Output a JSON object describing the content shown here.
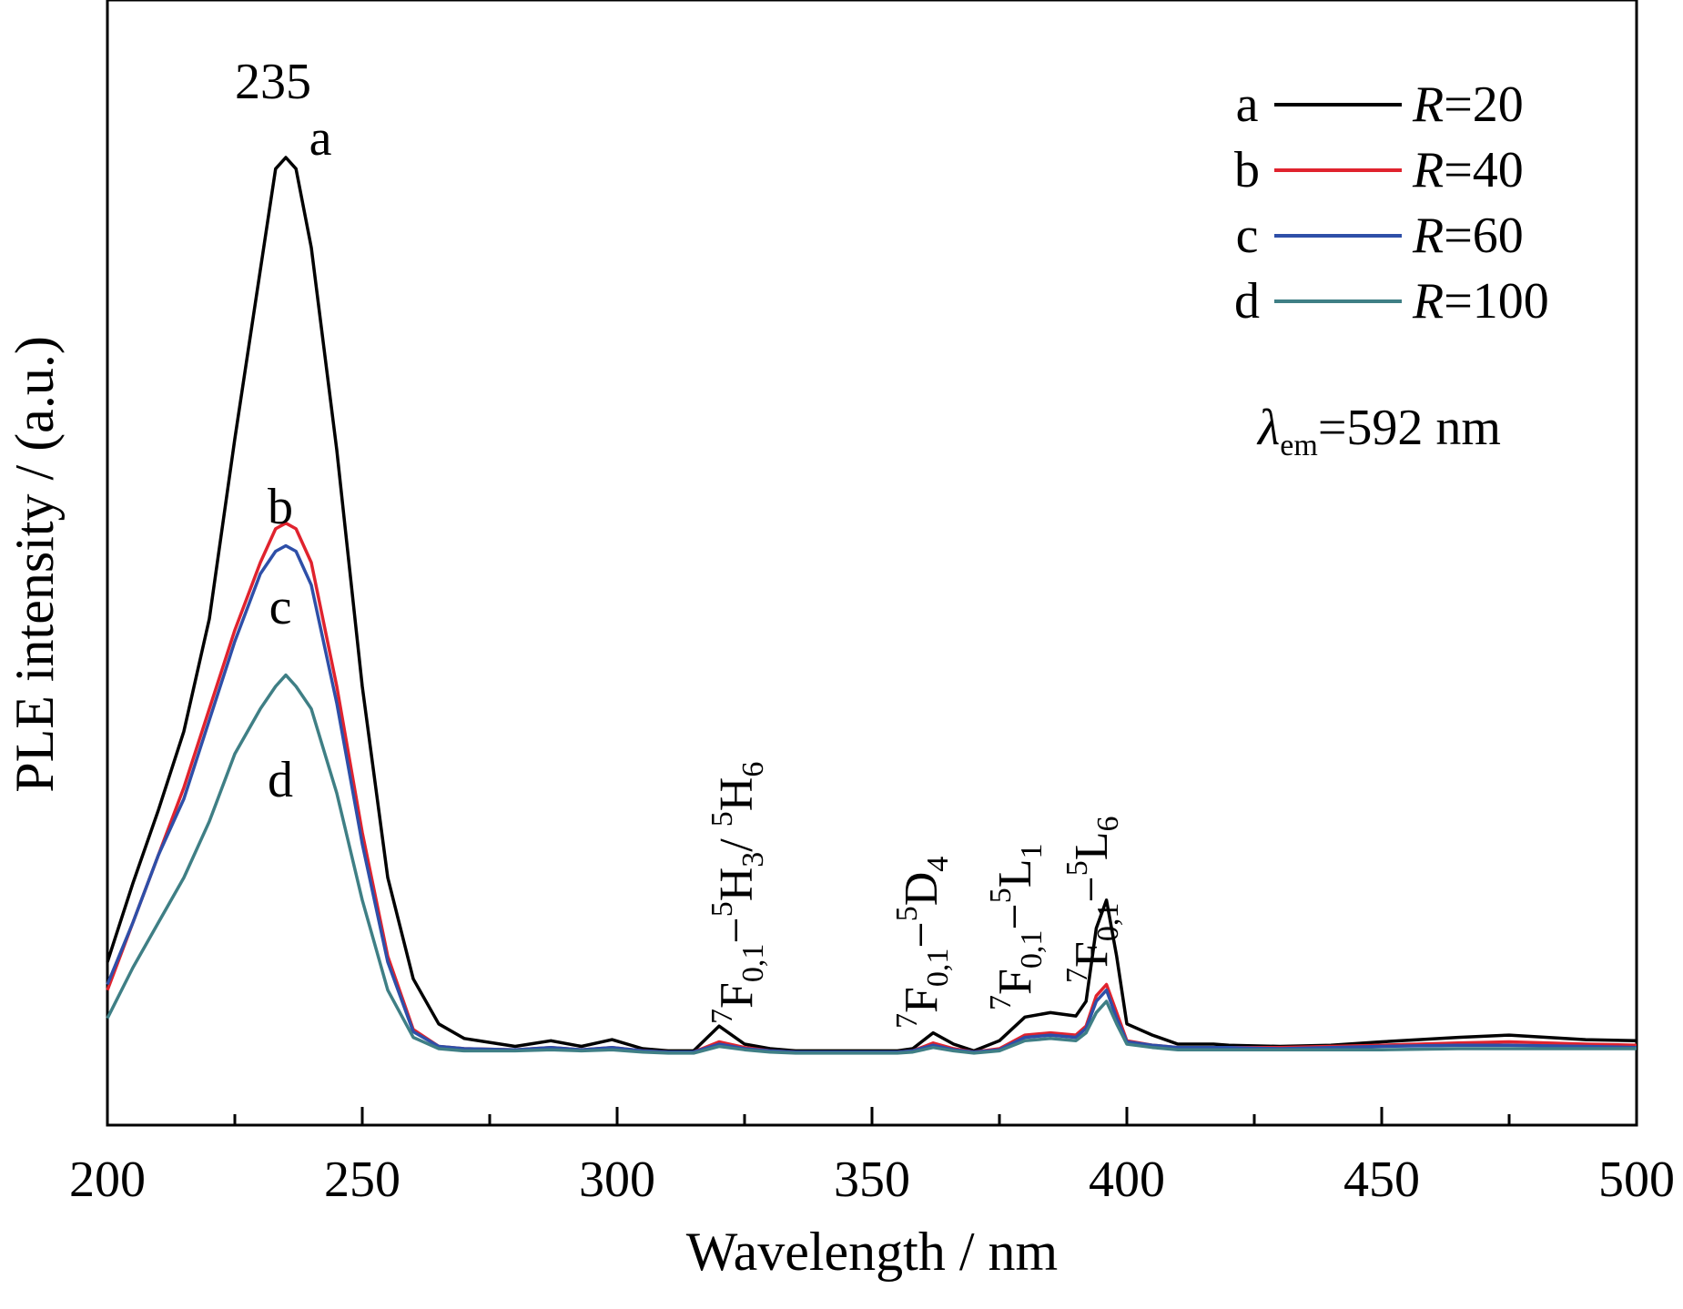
{
  "chart_data": {
    "type": "line",
    "xlabel": "Wavelength / nm",
    "ylabel": "PLE intensity / (a.u.)",
    "xlim": [
      200,
      500
    ],
    "ylim": [
      0,
      1
    ],
    "x_ticks": [
      "200",
      "250",
      "300",
      "350",
      "400",
      "450",
      "500"
    ],
    "y_ticks_shown": false,
    "grid": false,
    "legend_placement": "top-right",
    "peak_annotation": "235",
    "excitation_note": {
      "symbol": "λ",
      "subscript": "em",
      "value": "=592 nm"
    },
    "transitions": [
      {
        "parts": [
          [
            "sup",
            "7"
          ],
          [
            "txt",
            "F"
          ],
          [
            "sub",
            "0,1"
          ],
          [
            "txt",
            "−"
          ],
          [
            "sup",
            "5"
          ],
          [
            "txt",
            "H"
          ],
          [
            "sub",
            "3"
          ],
          [
            "txt",
            "/ "
          ],
          [
            "sup",
            "5"
          ],
          [
            "txt",
            "H"
          ],
          [
            "sub",
            "6"
          ]
        ]
      },
      {
        "parts": [
          [
            "sup",
            "7"
          ],
          [
            "txt",
            "F"
          ],
          [
            "sub",
            "0,1"
          ],
          [
            "txt",
            "−"
          ],
          [
            "sup",
            "5"
          ],
          [
            "txt",
            "D"
          ],
          [
            "sub",
            "4"
          ]
        ]
      },
      {
        "parts": [
          [
            "sup",
            "7"
          ],
          [
            "txt",
            "F"
          ],
          [
            "sub",
            "0,1"
          ],
          [
            "txt",
            "−"
          ],
          [
            "sup",
            "5"
          ],
          [
            "txt",
            "L"
          ],
          [
            "sub",
            "1"
          ]
        ]
      },
      {
        "parts": [
          [
            "sup",
            "7"
          ],
          [
            "txt",
            "F"
          ],
          [
            "sub",
            "0,1"
          ],
          [
            "txt",
            "−"
          ],
          [
            "sup",
            "5"
          ],
          [
            "txt",
            "L"
          ],
          [
            "sub",
            "6"
          ]
        ]
      }
    ],
    "x": [
      200,
      205,
      210,
      215,
      220,
      225,
      230,
      233,
      235,
      237,
      240,
      245,
      250,
      255,
      260,
      265,
      270,
      280,
      287,
      293,
      299,
      305,
      310,
      315,
      320,
      325,
      330,
      335,
      340,
      345,
      350,
      355,
      358,
      362,
      366,
      370,
      375,
      380,
      385,
      390,
      392,
      394,
      396,
      398,
      400,
      405,
      410,
      417,
      420,
      430,
      440,
      450,
      465,
      475,
      490,
      500
    ],
    "series": [
      {
        "name": "a",
        "legend": "R=20",
        "color": "#000000",
        "values": [
          0.145,
          0.215,
          0.28,
          0.35,
          0.45,
          0.61,
          0.76,
          0.85,
          0.86,
          0.85,
          0.78,
          0.6,
          0.39,
          0.22,
          0.13,
          0.09,
          0.077,
          0.07,
          0.075,
          0.07,
          0.076,
          0.068,
          0.066,
          0.066,
          0.088,
          0.072,
          0.068,
          0.066,
          0.066,
          0.066,
          0.066,
          0.066,
          0.068,
          0.082,
          0.072,
          0.066,
          0.075,
          0.096,
          0.1,
          0.097,
          0.11,
          0.175,
          0.2,
          0.15,
          0.09,
          0.08,
          0.072,
          0.072,
          0.071,
          0.07,
          0.071,
          0.074,
          0.078,
          0.08,
          0.076,
          0.075
        ]
      },
      {
        "name": "b",
        "legend": "R=40",
        "color": "#e0232e",
        "values": [
          0.12,
          0.18,
          0.24,
          0.3,
          0.37,
          0.44,
          0.5,
          0.53,
          0.535,
          0.53,
          0.5,
          0.39,
          0.26,
          0.15,
          0.085,
          0.07,
          0.068,
          0.067,
          0.069,
          0.067,
          0.069,
          0.066,
          0.065,
          0.065,
          0.074,
          0.069,
          0.066,
          0.065,
          0.065,
          0.065,
          0.065,
          0.065,
          0.066,
          0.073,
          0.068,
          0.065,
          0.068,
          0.08,
          0.082,
          0.08,
          0.088,
          0.115,
          0.125,
          0.1,
          0.075,
          0.071,
          0.069,
          0.069,
          0.069,
          0.069,
          0.07,
          0.071,
          0.073,
          0.074,
          0.072,
          0.071
        ]
      },
      {
        "name": "c",
        "legend": "R=60",
        "color": "#2e4fa8",
        "values": [
          0.125,
          0.18,
          0.24,
          0.29,
          0.36,
          0.43,
          0.49,
          0.51,
          0.515,
          0.51,
          0.48,
          0.375,
          0.25,
          0.145,
          0.083,
          0.07,
          0.068,
          0.067,
          0.069,
          0.067,
          0.069,
          0.066,
          0.065,
          0.065,
          0.072,
          0.068,
          0.066,
          0.065,
          0.065,
          0.065,
          0.065,
          0.065,
          0.066,
          0.071,
          0.067,
          0.065,
          0.067,
          0.078,
          0.08,
          0.078,
          0.086,
          0.11,
          0.12,
          0.095,
          0.074,
          0.071,
          0.069,
          0.069,
          0.069,
          0.068,
          0.069,
          0.07,
          0.071,
          0.071,
          0.07,
          0.069
        ]
      },
      {
        "name": "d",
        "legend": "R=100",
        "color": "#3f7f85",
        "values": [
          0.095,
          0.14,
          0.18,
          0.22,
          0.27,
          0.33,
          0.37,
          0.39,
          0.4,
          0.39,
          0.37,
          0.295,
          0.2,
          0.12,
          0.078,
          0.068,
          0.066,
          0.066,
          0.067,
          0.066,
          0.067,
          0.065,
          0.064,
          0.064,
          0.07,
          0.067,
          0.065,
          0.064,
          0.064,
          0.064,
          0.064,
          0.064,
          0.065,
          0.069,
          0.066,
          0.064,
          0.066,
          0.075,
          0.077,
          0.075,
          0.082,
          0.1,
          0.11,
          0.09,
          0.072,
          0.069,
          0.067,
          0.067,
          0.067,
          0.067,
          0.067,
          0.067,
          0.068,
          0.068,
          0.068,
          0.068
        ]
      }
    ]
  }
}
